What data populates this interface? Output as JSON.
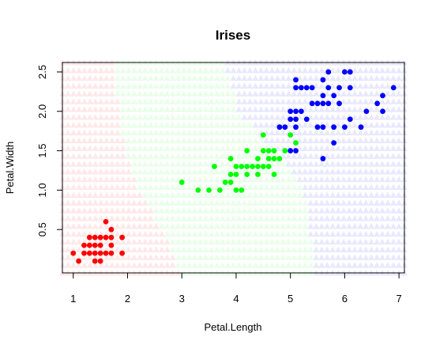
{
  "chart_data": {
    "type": "scatter",
    "title": "Irises",
    "xlabel": "Petal.Length",
    "ylabel": "Petal.Width",
    "xlim": [
      0.8,
      7.1
    ],
    "ylim": [
      -0.05,
      2.62
    ],
    "xticks": [
      "1",
      "2",
      "3",
      "4",
      "5",
      "6",
      "7"
    ],
    "yticks": [
      "0.5",
      "1.0",
      "1.5",
      "2.0",
      "2.5"
    ],
    "background_grid": "classification regions of three classes drawn with translucent triangle markers",
    "regions": {
      "colors": [
        "#ff0000",
        "#00ff00",
        "#0000ff"
      ],
      "boundary_red_green": [
        [
          1.75,
          2.6
        ],
        [
          1.85,
          1.9
        ],
        [
          2.1,
          1.2
        ],
        [
          2.55,
          0.6
        ],
        [
          2.85,
          0.2
        ],
        [
          2.95,
          -0.05
        ]
      ],
      "boundary_green_blue": [
        [
          3.8,
          2.6
        ],
        [
          4.05,
          2.0
        ],
        [
          4.55,
          1.6
        ],
        [
          5.1,
          1.2
        ],
        [
          5.3,
          0.8
        ],
        [
          5.4,
          0.2
        ],
        [
          5.45,
          -0.05
        ]
      ]
    },
    "series": [
      {
        "color": "#ff0000",
        "points": [
          [
            1.0,
            0.2
          ],
          [
            1.1,
            0.1
          ],
          [
            1.2,
            0.2
          ],
          [
            1.2,
            0.3
          ],
          [
            1.3,
            0.2
          ],
          [
            1.3,
            0.3
          ],
          [
            1.3,
            0.4
          ],
          [
            1.4,
            0.1
          ],
          [
            1.4,
            0.2
          ],
          [
            1.4,
            0.3
          ],
          [
            1.4,
            0.4
          ],
          [
            1.5,
            0.1
          ],
          [
            1.5,
            0.2
          ],
          [
            1.5,
            0.3
          ],
          [
            1.5,
            0.4
          ],
          [
            1.6,
            0.2
          ],
          [
            1.6,
            0.4
          ],
          [
            1.6,
            0.6
          ],
          [
            1.7,
            0.2
          ],
          [
            1.7,
            0.3
          ],
          [
            1.7,
            0.4
          ],
          [
            1.7,
            0.5
          ],
          [
            1.9,
            0.2
          ],
          [
            1.9,
            0.4
          ]
        ]
      },
      {
        "color": "#00ff00",
        "points": [
          [
            3.0,
            1.1
          ],
          [
            3.3,
            1.0
          ],
          [
            3.5,
            1.0
          ],
          [
            3.6,
            1.3
          ],
          [
            3.7,
            1.0
          ],
          [
            3.8,
            1.1
          ],
          [
            3.9,
            1.1
          ],
          [
            3.9,
            1.2
          ],
          [
            3.9,
            1.4
          ],
          [
            4.0,
            1.0
          ],
          [
            4.0,
            1.2
          ],
          [
            4.0,
            1.3
          ],
          [
            4.1,
            1.0
          ],
          [
            4.1,
            1.3
          ],
          [
            4.2,
            1.2
          ],
          [
            4.2,
            1.3
          ],
          [
            4.2,
            1.5
          ],
          [
            4.3,
            1.3
          ],
          [
            4.4,
            1.2
          ],
          [
            4.4,
            1.3
          ],
          [
            4.4,
            1.4
          ],
          [
            4.5,
            1.3
          ],
          [
            4.5,
            1.5
          ],
          [
            4.5,
            1.7
          ],
          [
            4.6,
            1.3
          ],
          [
            4.6,
            1.4
          ],
          [
            4.6,
            1.5
          ],
          [
            4.7,
            1.2
          ],
          [
            4.7,
            1.4
          ],
          [
            4.7,
            1.5
          ],
          [
            4.8,
            1.4
          ],
          [
            4.8,
            1.8
          ],
          [
            4.9,
            1.5
          ],
          [
            5.0,
            1.7
          ],
          [
            5.1,
            1.6
          ]
        ]
      },
      {
        "color": "#0000ff",
        "points": [
          [
            4.8,
            1.8
          ],
          [
            4.9,
            1.8
          ],
          [
            5.0,
            1.5
          ],
          [
            5.0,
            1.9
          ],
          [
            5.0,
            2.0
          ],
          [
            5.1,
            1.5
          ],
          [
            5.1,
            1.8
          ],
          [
            5.1,
            1.9
          ],
          [
            5.1,
            2.0
          ],
          [
            5.1,
            2.3
          ],
          [
            5.1,
            2.4
          ],
          [
            5.2,
            2.0
          ],
          [
            5.2,
            2.3
          ],
          [
            5.3,
            1.9
          ],
          [
            5.3,
            2.3
          ],
          [
            5.4,
            2.1
          ],
          [
            5.4,
            2.3
          ],
          [
            5.5,
            1.8
          ],
          [
            5.5,
            2.1
          ],
          [
            5.6,
            1.4
          ],
          [
            5.6,
            1.8
          ],
          [
            5.6,
            2.1
          ],
          [
            5.6,
            2.2
          ],
          [
            5.6,
            2.4
          ],
          [
            5.7,
            2.1
          ],
          [
            5.7,
            2.3
          ],
          [
            5.7,
            2.5
          ],
          [
            5.8,
            1.6
          ],
          [
            5.8,
            1.8
          ],
          [
            5.8,
            2.2
          ],
          [
            5.9,
            2.1
          ],
          [
            5.9,
            2.3
          ],
          [
            6.0,
            1.8
          ],
          [
            6.0,
            2.5
          ],
          [
            6.1,
            1.9
          ],
          [
            6.1,
            2.3
          ],
          [
            6.1,
            2.5
          ],
          [
            6.3,
            1.8
          ],
          [
            6.4,
            2.0
          ],
          [
            6.6,
            2.1
          ],
          [
            6.7,
            2.0
          ],
          [
            6.7,
            2.2
          ],
          [
            6.9,
            2.3
          ]
        ]
      }
    ]
  }
}
